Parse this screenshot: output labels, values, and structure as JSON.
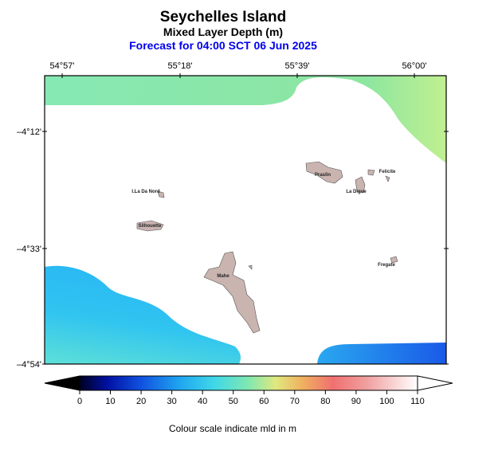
{
  "header": {
    "title": "Seychelles Island",
    "subtitle": "Mixed Layer Depth (m)",
    "forecast": "Forecast for  04:00 SCT 06 Jun 2025"
  },
  "map": {
    "lon_labels": [
      "54°57'",
      "55°18'",
      "55°39'",
      "56°00'"
    ],
    "lat_labels": [
      "–4°12'",
      "–4°33'",
      "–4°54'"
    ],
    "islands": [
      "I.La Da Nord",
      "Silhouette",
      "Praslin",
      "Felicite",
      "La Digue",
      "Fregate",
      "Mahe"
    ]
  },
  "colorbar": {
    "ticks": [
      "0",
      "10",
      "20",
      "30",
      "40",
      "50",
      "60",
      "70",
      "80",
      "90",
      "100",
      "110"
    ],
    "caption": "Colour scale indicate mld in m"
  }
}
